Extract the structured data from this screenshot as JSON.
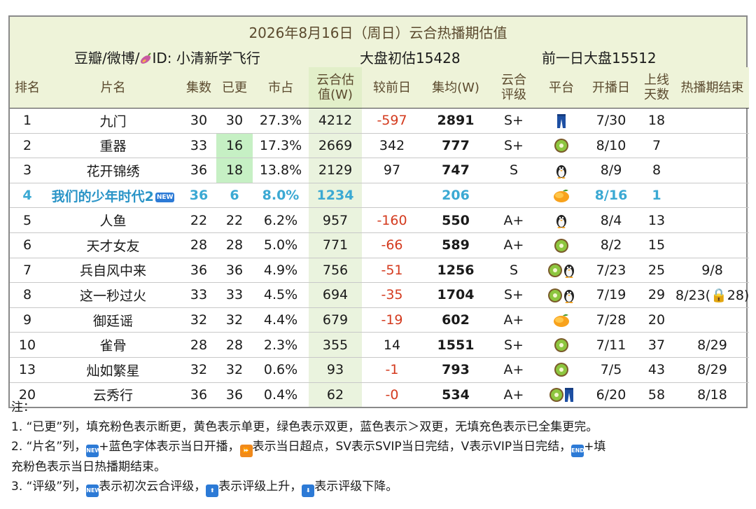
{
  "header": {
    "title": "2026年8月16日（周日）云合热播期估值",
    "source": "豆瓣/微博/",
    "source_id": "ID: 小清新学飞行",
    "market_initial": "大盘初估15428",
    "market_prev": "前一日大盘15512"
  },
  "columns": [
    "排名",
    "片名",
    "集数",
    "已更",
    "市占",
    "云合估值(W)",
    "较前日",
    "集均(W)",
    "云合评级",
    "平台",
    "开播日",
    "上线天数",
    "热播期结束"
  ],
  "rows": [
    {
      "rank": "1",
      "name": "九门",
      "eps": "30",
      "updated": "30",
      "share": "27.3%",
      "est": "4212",
      "delta": "-597",
      "avg": "2891",
      "grade": "S+",
      "platforms": [
        "youku"
      ],
      "start": "7/30",
      "days": "18",
      "end": ""
    },
    {
      "rank": "2",
      "name": "重器",
      "eps": "33",
      "updated": "16",
      "share": "17.3%",
      "est": "2669",
      "delta": "342",
      "avg": "777",
      "grade": "S+",
      "platforms": [
        "iqiyi"
      ],
      "start": "8/10",
      "days": "7",
      "end": ""
    },
    {
      "rank": "3",
      "name": "花开锦绣",
      "eps": "36",
      "updated": "18",
      "share": "13.8%",
      "est": "2129",
      "delta": "97",
      "avg": "747",
      "grade": "S",
      "platforms": [
        "tencent"
      ],
      "start": "8/9",
      "days": "8",
      "end": ""
    },
    {
      "rank": "4",
      "name": "我们的少年时代2",
      "eps": "36",
      "updated": "6",
      "share": "8.0%",
      "est": "1234",
      "delta": "",
      "avg": "206",
      "grade": "",
      "platforms": [
        "mango"
      ],
      "start": "8/16",
      "days": "1",
      "end": ""
    },
    {
      "rank": "5",
      "name": "人鱼",
      "eps": "22",
      "updated": "22",
      "share": "6.2%",
      "est": "957",
      "delta": "-160",
      "avg": "550",
      "grade": "A+",
      "platforms": [
        "tencent"
      ],
      "start": "8/4",
      "days": "13",
      "end": ""
    },
    {
      "rank": "6",
      "name": "天才女友",
      "eps": "28",
      "updated": "28",
      "share": "5.0%",
      "est": "771",
      "delta": "-66",
      "avg": "589",
      "grade": "A+",
      "platforms": [
        "iqiyi"
      ],
      "start": "8/2",
      "days": "15",
      "end": ""
    },
    {
      "rank": "7",
      "name": "兵自风中来",
      "eps": "36",
      "updated": "36",
      "share": "4.9%",
      "est": "756",
      "delta": "-51",
      "avg": "1256",
      "grade": "S",
      "platforms": [
        "iqiyi",
        "tencent"
      ],
      "start": "7/23",
      "days": "25",
      "end": "9/8"
    },
    {
      "rank": "8",
      "name": "这一秒过火",
      "eps": "33",
      "updated": "33",
      "share": "4.5%",
      "est": "694",
      "delta": "-35",
      "avg": "1704",
      "grade": "S+",
      "platforms": [
        "iqiyi",
        "tencent"
      ],
      "start": "7/19",
      "days": "29",
      "end": "8/23(🔒28)"
    },
    {
      "rank": "9",
      "name": "御廷谣",
      "eps": "32",
      "updated": "32",
      "share": "4.4%",
      "est": "679",
      "delta": "-19",
      "avg": "602",
      "grade": "A+",
      "platforms": [
        "mango"
      ],
      "start": "7/28",
      "days": "20",
      "end": ""
    },
    {
      "rank": "10",
      "name": "雀骨",
      "eps": "28",
      "updated": "28",
      "share": "2.3%",
      "est": "355",
      "delta": "14",
      "avg": "1551",
      "grade": "S+",
      "platforms": [
        "iqiyi"
      ],
      "start": "7/11",
      "days": "37",
      "end": "8/29"
    },
    {
      "rank": "13",
      "name": "灿如繁星",
      "eps": "32",
      "updated": "32",
      "share": "0.6%",
      "est": "93",
      "delta": "-1",
      "avg": "793",
      "grade": "A+",
      "platforms": [
        "iqiyi"
      ],
      "start": "7/5",
      "days": "43",
      "end": "8/29"
    },
    {
      "rank": "20",
      "name": "云秀行",
      "eps": "36",
      "updated": "36",
      "share": "0.4%",
      "est": "62",
      "delta": "-0",
      "avg": "534",
      "grade": "A+",
      "platforms": [
        "iqiyi",
        "youku"
      ],
      "start": "6/20",
      "days": "58",
      "end": "8/18"
    }
  ],
  "new_badge": "NEW",
  "notes": {
    "heading": "注：",
    "line1": "1. “已更”列，填充粉色表示断更，黄色表示单更，绿色表示双更，蓝色表示＞双更，无填充色表示已全集更完。",
    "line2a": "2. “片名”列，",
    "line2b": "+蓝色字体表示当日开播，",
    "line2c": "表示当日超点，SV表示SVIP当日完结，V表示VIP当日完结，",
    "line2d": "+填",
    "line2e": "充粉色表示当日热播期结束。",
    "line3a": "3. “评级”列，",
    "line3b": "表示初次云合评级，",
    "line3c": "表示评级上升，",
    "line3d": "表示评级下降。",
    "badge_end": "END"
  },
  "colors": {
    "header_bg": "#eef3d9",
    "estimate_bg": "#eaf3de",
    "negative": "#d43b1f",
    "new_row": "#3ba9d3",
    "double_update": "#c6f0c4"
  }
}
